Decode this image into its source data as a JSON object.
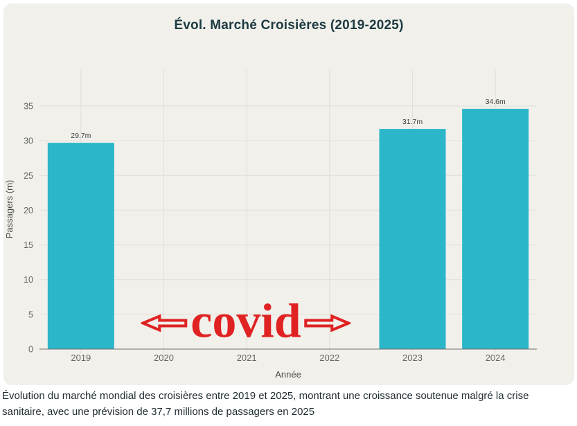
{
  "title": "Évol. Marché Croisières (2019-2025)",
  "caption": "Évolution du marché mondial des croisières entre 2019 et 2025, montrant une croissance soutenue malgré la crise sanitaire, avec une prévision de 37,7 millions de passagers en 2025",
  "annotation": {
    "text": "covid",
    "color": "#e02222",
    "arrows": [
      "left",
      "right"
    ]
  },
  "colors": {
    "page_bg": "#ffffff",
    "card_bg": "#f1f0eb",
    "bar": "#2bb6c9",
    "grid": "#e0dfd9",
    "axis_line": "#6e6e6e",
    "tick_text": "#666666",
    "axis_title_text": "#4a4a4a",
    "bar_label_text": "#3c3c3c",
    "title_text": "#1d3a41",
    "caption_text": "#1e2b31"
  },
  "chart_data": {
    "type": "bar",
    "title": "Évol. Marché Croisières (2019-2025)",
    "categories": [
      "2019",
      "2020",
      "2021",
      "2022",
      "2023",
      "2024"
    ],
    "values": [
      29.7,
      null,
      null,
      null,
      31.7,
      34.6
    ],
    "bar_labels": [
      "29.7m",
      "",
      "",
      "",
      "31.7m",
      "34.6m"
    ],
    "xlabel": "Année",
    "ylabel": "Passagers (m)",
    "ylim": [
      0,
      40
    ],
    "yticks": [
      0,
      5,
      10,
      15,
      20,
      25,
      30,
      35
    ],
    "grid": true,
    "legend": "none",
    "bar_color": "#2bb6c9",
    "annotation": {
      "text": "covid",
      "color": "#e02222",
      "covers_categories": [
        "2020",
        "2021",
        "2022"
      ]
    }
  }
}
